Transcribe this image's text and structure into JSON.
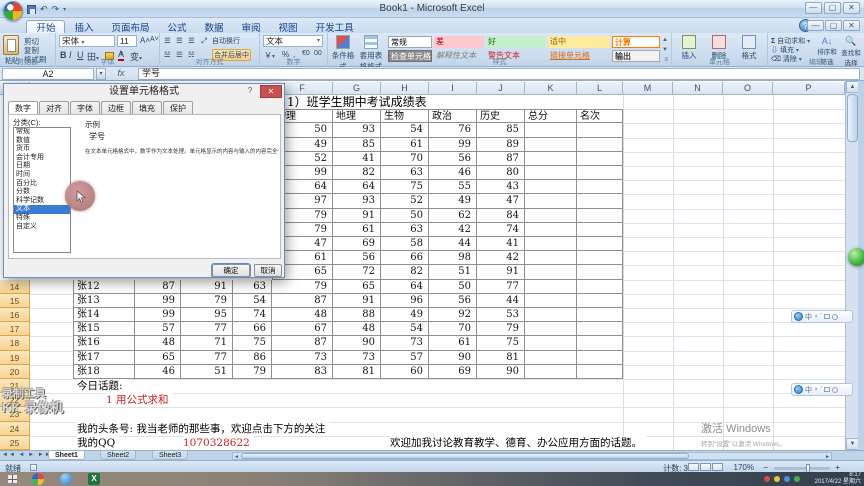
{
  "window": {
    "title": "Book1 - Microsoft Excel",
    "controls": {
      "minimize": "—",
      "maximize": "▢",
      "close": "✕"
    },
    "help": "?"
  },
  "ribbon": {
    "tabs": [
      "开始",
      "插入",
      "页面布局",
      "公式",
      "数据",
      "审阅",
      "视图",
      "开发工具"
    ],
    "active_tab": "开始",
    "clipboard": {
      "label": "剪贴板",
      "paste": "粘贴",
      "cut": "剪切",
      "copy": "复制",
      "painter": "格式刷"
    },
    "font": {
      "label": "字体",
      "name": "宋体",
      "size": "11"
    },
    "alignment": {
      "label": "对齐方式",
      "wrap": "自动换行",
      "merge": "合并后居中"
    },
    "number": {
      "label": "数字",
      "format": "文本"
    },
    "styles": {
      "label": "样式",
      "conditional": "条件格式",
      "format_table": "套用表格格式",
      "gallery_row1": [
        "常规",
        "差",
        "好",
        "适中",
        "计算"
      ],
      "gallery_row2": [
        "检查单元格",
        "解释性文本",
        "警告文本",
        "链接单元格",
        "输出"
      ]
    },
    "cells": {
      "label": "单元格",
      "insert": "插入",
      "delete": "删除",
      "format": "格式"
    },
    "editing": {
      "label": "编辑",
      "autosum": "自动求和",
      "fill": "填充",
      "clear": "清除",
      "sort": "排序和筛选",
      "find": "查找和选择"
    }
  },
  "formula_bar": {
    "name_box": "A2",
    "fx": "fx",
    "value": "学号"
  },
  "dialog": {
    "title": "设置单元格格式",
    "tabs": [
      "数字",
      "对齐",
      "字体",
      "边框",
      "填充",
      "保护"
    ],
    "active_tab": "数字",
    "category_label": "分类(C):",
    "categories": [
      "常规",
      "数值",
      "货币",
      "会计专用",
      "日期",
      "时间",
      "百分比",
      "分数",
      "科学记数",
      "文本",
      "特殊",
      "自定义"
    ],
    "selected_category": "文本",
    "sample_label": "示例",
    "sample_value": "学号",
    "description": "在文本单元格格式中，数字作为文本处理。单元格显示的内容与输入的内容完全一致。",
    "ok": "确定",
    "cancel": "取消"
  },
  "sheet": {
    "visible_columns": [
      "F",
      "G",
      "H",
      "I",
      "J",
      "K",
      "L",
      "M",
      "N",
      "O",
      "P"
    ],
    "title_row": "1）班学生期中考试成绩表",
    "subject_headers": [
      "物理",
      "地理",
      "生物",
      "政治",
      "历史",
      "总分",
      "名次"
    ],
    "upper_rows": [
      {
        "row": 3,
        "values": [
          50,
          93,
          54,
          76,
          85
        ]
      },
      {
        "row": 4,
        "values": [
          49,
          85,
          61,
          99,
          89
        ]
      },
      {
        "row": 5,
        "values": [
          52,
          41,
          70,
          56,
          87
        ]
      },
      {
        "row": 6,
        "values": [
          99,
          82,
          63,
          46,
          80
        ]
      },
      {
        "row": 7,
        "values": [
          64,
          64,
          75,
          55,
          43
        ]
      },
      {
        "row": 8,
        "values": [
          97,
          93,
          52,
          49,
          47
        ]
      },
      {
        "row": 9,
        "values": [
          79,
          91,
          50,
          62,
          84
        ]
      },
      {
        "row": 10,
        "values": [
          79,
          61,
          63,
          42,
          74
        ]
      },
      {
        "row": 11,
        "values": [
          47,
          69,
          58,
          44,
          41
        ]
      },
      {
        "row": 12,
        "values": [
          61,
          56,
          66,
          98,
          42
        ]
      },
      {
        "row": 13,
        "values": [
          65,
          72,
          82,
          51,
          91
        ]
      }
    ],
    "lower_rows": [
      {
        "row": 14,
        "name": "张12",
        "values": [
          87,
          91,
          63,
          79,
          65,
          64,
          50,
          77
        ]
      },
      {
        "row": 15,
        "name": "张13",
        "values": [
          99,
          79,
          54,
          87,
          91,
          96,
          56,
          44
        ]
      },
      {
        "row": 16,
        "name": "张14",
        "values": [
          99,
          95,
          74,
          48,
          88,
          49,
          92,
          53
        ]
      },
      {
        "row": 17,
        "name": "张15",
        "values": [
          57,
          77,
          66,
          67,
          48,
          54,
          70,
          79
        ]
      },
      {
        "row": 18,
        "name": "张16",
        "values": [
          48,
          71,
          75,
          87,
          90,
          73,
          61,
          75
        ]
      },
      {
        "row": 19,
        "name": "张17",
        "values": [
          65,
          77,
          86,
          73,
          73,
          57,
          90,
          81
        ]
      },
      {
        "row": 20,
        "name": "张18",
        "values": [
          46,
          51,
          79,
          83,
          81,
          60,
          69,
          90
        ]
      }
    ],
    "note_rows": [
      {
        "row": 21,
        "segments": [
          {
            "text": "今日话题:",
            "color": "#000000"
          }
        ]
      },
      {
        "row": 22,
        "segments": [
          {
            "text": "1 用公式求和",
            "color": "#cc2020"
          }
        ]
      },
      {
        "row": 23,
        "segments": []
      },
      {
        "row": 24,
        "segments": [
          {
            "text": "我的头条号: 我当老师的那些事，欢迎点击下方的关注",
            "color": "#000000"
          }
        ]
      },
      {
        "row": 25,
        "segments": [
          {
            "text": "我的QQ",
            "color": "#000000"
          },
          {
            "text": "1070328622",
            "color": "#cc2020"
          },
          {
            "text": "欢迎加我讨论教育教学、德育、办公应用方面的话题。",
            "color": "#000000"
          }
        ]
      }
    ],
    "sheet_tabs": [
      "Sheet1",
      "Sheet2",
      "Sheet3"
    ],
    "active_sheet_tab": "Sheet1"
  },
  "status_bar": {
    "ready": "就绪",
    "count": "计数: 3",
    "zoom": "170%",
    "zoom_minus": "−",
    "zoom_plus": "+"
  },
  "taskbar": {
    "time": "8:17",
    "date": "2017/4/22 星期六"
  },
  "overlays": {
    "recorder_line1": "录制工具",
    "recorder_line2": "KK 录像机",
    "activate_title": "激活 Windows",
    "activate_sub": "转到\"设置\"以激活 Windows。",
    "ime_mode": "中"
  }
}
